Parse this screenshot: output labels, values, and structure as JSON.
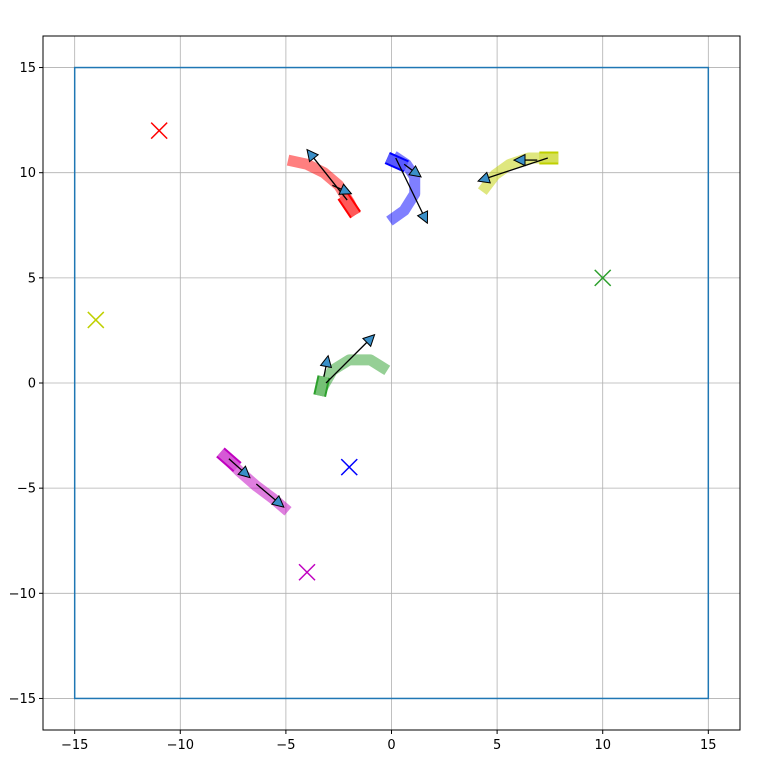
{
  "chart_data": {
    "type": "scatter",
    "title": "",
    "xlabel": "",
    "ylabel": "",
    "xlim": [
      -16.5,
      16.5
    ],
    "ylim": [
      -16.5,
      16.5
    ],
    "grid": true,
    "legend": "none",
    "x_ticks": [
      -15,
      -10,
      -5,
      0,
      5,
      10,
      15
    ],
    "y_ticks": [
      -15,
      -10,
      -5,
      0,
      5,
      10,
      15
    ],
    "x_tick_labels": [
      "−15",
      "−10",
      "−5",
      "0",
      "5",
      "10",
      "15"
    ],
    "y_tick_labels": [
      "−15",
      "−10",
      "−5",
      "0",
      "5",
      "10",
      "15"
    ],
    "boundary": {
      "x_min": -15,
      "x_max": 15,
      "y_min": -15,
      "y_max": 15,
      "color": "#1f77b4"
    },
    "series": [
      {
        "color": "#ff0000",
        "goal": [
          -11,
          12
        ],
        "trail": [
          [
            -4.9,
            10.6
          ],
          [
            -4.0,
            10.4
          ],
          [
            -3.2,
            10.0
          ],
          [
            -2.5,
            9.4
          ],
          [
            -2.0,
            8.6
          ],
          [
            -1.7,
            8.0
          ]
        ],
        "body": {
          "from": [
            -2.3,
            8.9
          ],
          "to": [
            -1.7,
            8.0
          ]
        },
        "arrows": [
          {
            "from": [
              -2.1,
              8.7
            ],
            "to": [
              -4.0,
              11.1
            ]
          },
          {
            "from": [
              -2.8,
              9.4
            ],
            "to": [
              -1.9,
              9.0
            ]
          }
        ]
      },
      {
        "color": "#0000ff",
        "goal": [
          -2,
          -4
        ],
        "trail": [
          [
            -0.1,
            7.7
          ],
          [
            0.6,
            8.2
          ],
          [
            1.1,
            9.0
          ],
          [
            1.1,
            9.8
          ],
          [
            0.7,
            10.4
          ],
          [
            0.1,
            10.8
          ]
        ],
        "body": {
          "from": [
            -0.2,
            10.7
          ],
          "to": [
            0.7,
            10.3
          ]
        },
        "arrows": [
          {
            "from": [
              0.2,
              10.7
            ],
            "to": [
              1.7,
              7.6
            ]
          },
          {
            "from": [
              0.6,
              10.4
            ],
            "to": [
              1.4,
              9.8
            ]
          }
        ]
      },
      {
        "color": "#bfd000",
        "goal": [
          -14,
          3
        ],
        "trail": [
          [
            4.3,
            9.1
          ],
          [
            4.9,
            9.9
          ],
          [
            5.6,
            10.4
          ],
          [
            6.5,
            10.7
          ],
          [
            7.6,
            10.7
          ]
        ],
        "body": {
          "from": [
            7.0,
            10.7
          ],
          "to": [
            7.9,
            10.7
          ]
        },
        "arrows": [
          {
            "from": [
              7.4,
              10.7
            ],
            "to": [
              4.1,
              9.6
            ]
          },
          {
            "from": [
              6.9,
              10.6
            ],
            "to": [
              5.8,
              10.6
            ]
          }
        ]
      },
      {
        "color": "#2ca02c",
        "goal": [
          10,
          5
        ],
        "trail": [
          [
            -0.2,
            0.6
          ],
          [
            -1.0,
            1.1
          ],
          [
            -2.0,
            1.1
          ],
          [
            -2.8,
            0.6
          ],
          [
            -3.2,
            -0.1
          ],
          [
            -3.3,
            -0.3
          ]
        ],
        "body": {
          "from": [
            -3.4,
            -0.6
          ],
          "to": [
            -3.2,
            0.3
          ]
        },
        "arrows": [
          {
            "from": [
              -3.1,
              0.0
            ],
            "to": [
              -0.8,
              2.3
            ]
          },
          {
            "from": [
              -3.2,
              0.3
            ],
            "to": [
              -3.0,
              1.3
            ]
          }
        ]
      },
      {
        "color": "#c000c0",
        "goal": [
          -4,
          -9
        ],
        "trail": [
          [
            -8.0,
            -3.4
          ],
          [
            -7.2,
            -4.2
          ],
          [
            -6.4,
            -4.9
          ],
          [
            -5.6,
            -5.5
          ],
          [
            -4.9,
            -6.1
          ]
        ],
        "body": {
          "from": [
            -8.1,
            -3.3
          ],
          "to": [
            -7.3,
            -4.0
          ]
        },
        "arrows": [
          {
            "from": [
              -7.7,
              -3.6
            ],
            "to": [
              -6.7,
              -4.5
            ]
          },
          {
            "from": [
              -6.4,
              -4.8
            ],
            "to": [
              -5.1,
              -5.9
            ]
          }
        ]
      }
    ]
  }
}
